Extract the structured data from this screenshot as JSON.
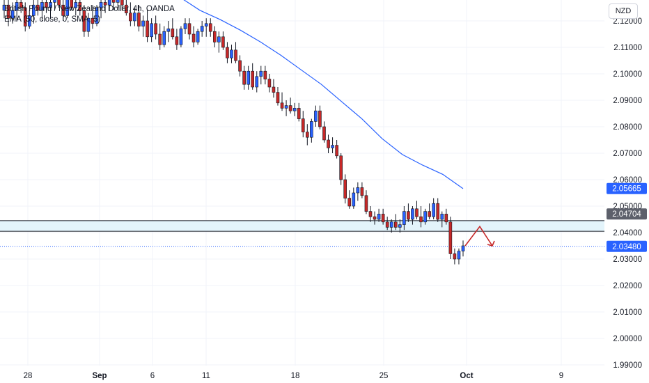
{
  "header": {
    "title": "British Pound / New Zealand Dollar, 4h, OANDA",
    "indicator": "EMA (50, close, 0, SMA, 5)",
    "currency_button": "NZD"
  },
  "colors": {
    "up": "#2962ff",
    "down": "#c62828",
    "ema": "#2962ff",
    "zone_fill": "#e3f4fb",
    "zone_line": "#131722",
    "grid": "#f0f3fa",
    "axis_text": "#131722",
    "arrow": "#c62828"
  },
  "chart_data": {
    "type": "candlestick",
    "title": "British Pound / New Zealand Dollar, 4h, OANDA",
    "y_axis": {
      "ticks": [
        "2.12000",
        "2.11000",
        "2.10000",
        "2.09000",
        "2.08000",
        "2.07000",
        "2.06000",
        "2.05000",
        "2.04000",
        "2.03000",
        "2.02000",
        "2.01000",
        "2.00000",
        "1.99000"
      ],
      "ylim": [
        1.9875,
        2.1265
      ]
    },
    "x_axis": {
      "ticks": [
        "28",
        "Sep",
        "6",
        "11",
        "18",
        "25",
        "Oct",
        "9"
      ],
      "bold": [
        "Sep",
        "Oct"
      ]
    },
    "price_labels": [
      {
        "value": "2.05665",
        "style": "blue"
      },
      {
        "value": "2.04704",
        "style": "dark"
      },
      {
        "value": "2.03480",
        "style": "blue"
      }
    ],
    "zone": {
      "low": 2.0405,
      "high": 2.0445
    },
    "dotted_level": 2.0348,
    "ema_series": [
      [
        1,
        2.129
      ],
      [
        1.4,
        2.127
      ],
      [
        2,
        2.124
      ],
      [
        3,
        2.1205
      ],
      [
        4,
        2.1165
      ],
      [
        5,
        2.112
      ],
      [
        6,
        2.107
      ],
      [
        7,
        2.1015
      ],
      [
        8,
        2.096
      ],
      [
        9,
        2.0895
      ],
      [
        10,
        2.083
      ],
      [
        11,
        2.0755
      ],
      [
        12,
        2.0695
      ],
      [
        13,
        2.0655
      ],
      [
        14,
        2.062
      ],
      [
        15,
        2.0566
      ]
    ],
    "candles": [
      [
        2.124,
        2.129,
        2.121,
        2.126
      ],
      [
        2.126,
        2.128,
        2.118,
        2.121
      ],
      [
        2.121,
        2.127,
        2.119,
        2.124
      ],
      [
        2.124,
        2.129,
        2.12,
        2.127
      ],
      [
        2.127,
        2.13,
        2.123,
        2.125
      ],
      [
        2.125,
        2.127,
        2.116,
        2.118
      ],
      [
        2.118,
        2.124,
        2.117,
        2.122
      ],
      [
        2.122,
        2.128,
        2.119,
        2.126
      ],
      [
        2.126,
        2.13,
        2.122,
        2.124
      ],
      [
        2.124,
        2.128,
        2.12,
        2.127
      ],
      [
        2.127,
        2.13,
        2.123,
        2.125
      ],
      [
        2.125,
        2.129,
        2.121,
        2.127
      ],
      [
        2.127,
        2.13,
        2.124,
        2.128
      ],
      [
        2.128,
        2.13,
        2.125,
        2.126
      ],
      [
        2.126,
        2.13,
        2.12,
        2.122
      ],
      [
        2.122,
        2.129,
        2.121,
        2.128
      ],
      [
        2.128,
        2.13,
        2.124,
        2.125
      ],
      [
        2.125,
        2.129,
        2.122,
        2.127
      ],
      [
        2.127,
        2.13,
        2.122,
        2.124
      ],
      [
        2.124,
        2.126,
        2.114,
        2.116
      ],
      [
        2.116,
        2.123,
        2.114,
        2.121
      ],
      [
        2.121,
        2.126,
        2.117,
        2.119
      ],
      [
        2.119,
        2.126,
        2.118,
        2.125
      ],
      [
        2.125,
        2.129,
        2.121,
        2.127
      ],
      [
        2.127,
        2.13,
        2.123,
        2.126
      ],
      [
        2.126,
        2.13,
        2.124,
        2.128
      ],
      [
        2.128,
        2.13,
        2.124,
        2.127
      ],
      [
        2.127,
        2.13,
        2.125,
        2.128
      ],
      [
        2.128,
        2.13,
        2.124,
        2.126
      ],
      [
        2.126,
        2.13,
        2.122,
        2.123
      ],
      [
        2.123,
        2.127,
        2.118,
        2.12
      ],
      [
        2.12,
        2.125,
        2.118,
        2.123
      ],
      [
        2.123,
        2.126,
        2.116,
        2.118
      ],
      [
        2.118,
        2.122,
        2.114,
        2.12
      ],
      [
        2.12,
        2.124,
        2.112,
        2.114
      ],
      [
        2.114,
        2.121,
        2.112,
        2.119
      ],
      [
        2.119,
        2.122,
        2.113,
        2.115
      ],
      [
        2.115,
        2.119,
        2.109,
        2.111
      ],
      [
        2.111,
        2.118,
        2.11,
        2.116
      ],
      [
        2.116,
        2.12,
        2.112,
        2.117
      ],
      [
        2.117,
        2.121,
        2.113,
        2.114
      ],
      [
        2.114,
        2.117,
        2.109,
        2.111
      ],
      [
        2.111,
        2.118,
        2.11,
        2.117
      ],
      [
        2.117,
        2.121,
        2.115,
        2.119
      ],
      [
        2.119,
        2.121,
        2.113,
        2.115
      ],
      [
        2.115,
        2.118,
        2.11,
        2.112
      ],
      [
        2.112,
        2.117,
        2.111,
        2.116
      ],
      [
        2.116,
        2.12,
        2.114,
        2.118
      ],
      [
        2.118,
        2.121,
        2.114,
        2.119
      ],
      [
        2.119,
        2.121,
        2.114,
        2.116
      ],
      [
        2.116,
        2.118,
        2.11,
        2.112
      ],
      [
        2.112,
        2.116,
        2.108,
        2.114
      ],
      [
        2.114,
        2.116,
        2.109,
        2.11
      ],
      [
        2.11,
        2.112,
        2.104,
        2.106
      ],
      [
        2.106,
        2.111,
        2.104,
        2.109
      ],
      [
        2.109,
        2.112,
        2.104,
        2.105
      ],
      [
        2.105,
        2.107,
        2.099,
        2.101
      ],
      [
        2.101,
        2.103,
        2.094,
        2.096
      ],
      [
        2.096,
        2.103,
        2.094,
        2.101
      ],
      [
        2.101,
        2.104,
        2.094,
        2.095
      ],
      [
        2.095,
        2.101,
        2.093,
        2.099
      ],
      [
        2.099,
        2.103,
        2.096,
        2.101
      ],
      [
        2.101,
        2.103,
        2.096,
        2.098
      ],
      [
        2.098,
        2.1,
        2.093,
        2.095
      ],
      [
        2.095,
        2.098,
        2.091,
        2.093
      ],
      [
        2.093,
        2.095,
        2.088,
        2.089
      ],
      [
        2.089,
        2.093,
        2.086,
        2.087
      ],
      [
        2.087,
        2.09,
        2.084,
        2.088
      ],
      [
        2.088,
        2.091,
        2.085,
        2.086
      ],
      [
        2.086,
        2.089,
        2.084,
        2.087
      ],
      [
        2.087,
        2.089,
        2.082,
        2.083
      ],
      [
        2.083,
        2.086,
        2.076,
        2.078
      ],
      [
        2.078,
        2.081,
        2.073,
        2.076
      ],
      [
        2.076,
        2.083,
        2.074,
        2.082
      ],
      [
        2.082,
        2.088,
        2.08,
        2.086
      ],
      [
        2.086,
        2.088,
        2.079,
        2.08
      ],
      [
        2.08,
        2.082,
        2.074,
        2.075
      ],
      [
        2.075,
        2.077,
        2.07,
        2.072
      ],
      [
        2.072,
        2.076,
        2.07,
        2.073
      ],
      [
        2.073,
        2.075,
        2.068,
        2.069
      ],
      [
        2.069,
        2.07,
        2.058,
        2.06
      ],
      [
        2.06,
        2.062,
        2.051,
        2.053
      ],
      [
        2.053,
        2.056,
        2.049,
        2.05
      ],
      [
        2.05,
        2.057,
        2.049,
        2.055
      ],
      [
        2.055,
        2.059,
        2.052,
        2.057
      ],
      [
        2.057,
        2.059,
        2.053,
        2.054
      ],
      [
        2.054,
        2.056,
        2.047,
        2.048
      ],
      [
        2.048,
        2.05,
        2.044,
        2.046
      ],
      [
        2.046,
        2.048,
        2.043,
        2.045
      ],
      [
        2.045,
        2.049,
        2.044,
        2.047
      ],
      [
        2.047,
        2.049,
        2.043,
        2.044
      ],
      [
        2.044,
        2.046,
        2.041,
        2.042
      ],
      [
        2.042,
        2.045,
        2.04,
        2.044
      ],
      [
        2.044,
        2.047,
        2.041,
        2.042
      ],
      [
        2.042,
        2.045,
        2.04,
        2.043
      ],
      [
        2.043,
        2.05,
        2.041,
        2.048
      ],
      [
        2.048,
        2.051,
        2.044,
        2.045
      ],
      [
        2.045,
        2.05,
        2.043,
        2.049
      ],
      [
        2.049,
        2.052,
        2.045,
        2.046
      ],
      [
        2.046,
        2.05,
        2.042,
        2.044
      ],
      [
        2.044,
        2.049,
        2.043,
        2.048
      ],
      [
        2.048,
        2.051,
        2.045,
        2.046
      ],
      [
        2.046,
        2.053,
        2.045,
        2.051
      ],
      [
        2.051,
        2.053,
        2.044,
        2.045
      ],
      [
        2.045,
        2.048,
        2.042,
        2.047
      ],
      [
        2.047,
        2.049,
        2.043,
        2.044
      ],
      [
        2.044,
        2.046,
        2.03,
        2.032
      ],
      [
        2.032,
        2.034,
        2.028,
        2.03
      ],
      [
        2.03,
        2.034,
        2.028,
        2.033
      ],
      [
        2.033,
        2.037,
        2.031,
        2.035
      ]
    ],
    "projection_arrow": [
      [
        2.035,
        2.0423,
        2.035
      ]
    ]
  }
}
